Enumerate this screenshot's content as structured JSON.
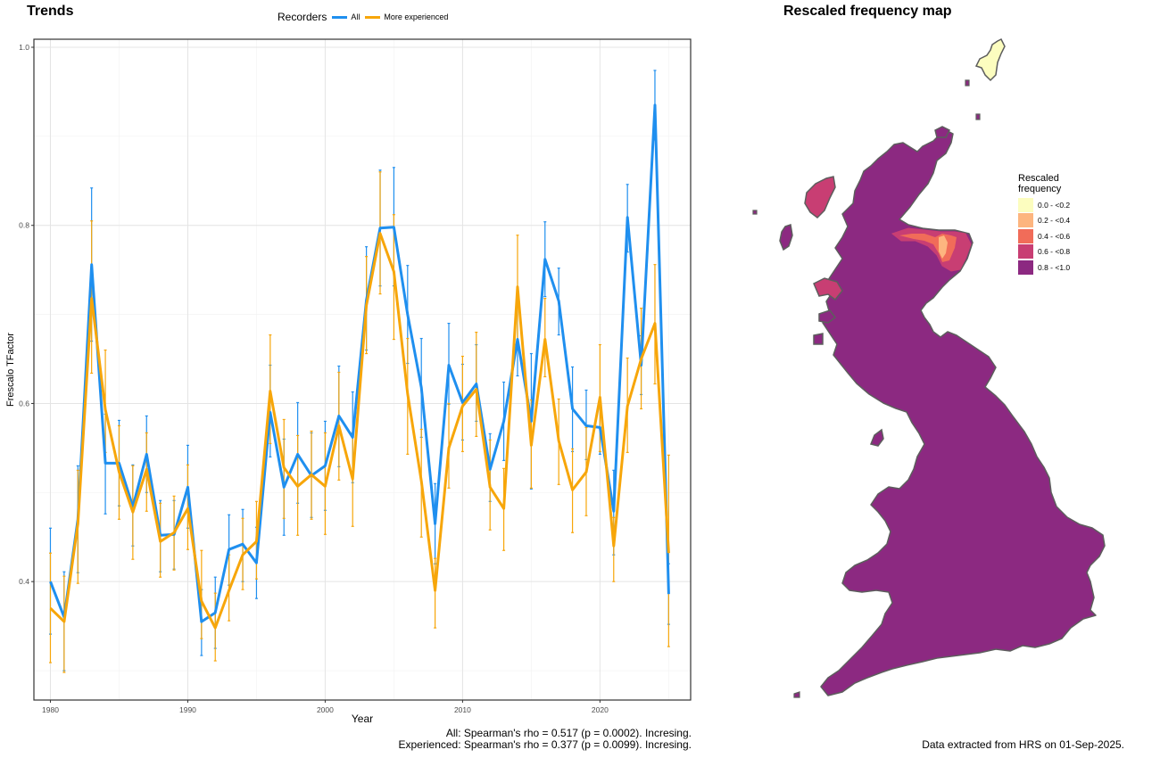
{
  "trends_title": "Trends",
  "map_title": "Rescaled frequency map",
  "legend": {
    "title": "Recorders",
    "items": [
      {
        "label": "All",
        "color": "#1f8fef"
      },
      {
        "label": "More experienced",
        "color": "#f7a60a"
      }
    ]
  },
  "chart_data": {
    "type": "line",
    "xlabel": "Year",
    "ylabel": "Frescalo TFactor",
    "x_ticks": [
      1980,
      1990,
      2000,
      2010,
      2020
    ],
    "y_ticks": [
      0.4,
      0.6,
      0.8,
      1.0
    ],
    "y_tick_labels": [
      "0.4",
      "0.6",
      "0.8",
      "1.0"
    ],
    "xlim": [
      1978.8,
      2026.6
    ],
    "ylim": [
      0.267,
      1.009
    ],
    "grid": true,
    "legend_position": "top",
    "series": [
      {
        "name": "All",
        "color": "#1f8fef",
        "x": [
          1980,
          1981,
          1982,
          1983,
          1984,
          1985,
          1986,
          1987,
          1988,
          1989,
          1990,
          1991,
          1992,
          1993,
          1994,
          1995,
          1996,
          1997,
          1998,
          1999,
          2000,
          2001,
          2002,
          2003,
          2004,
          2005,
          2006,
          2007,
          2008,
          2009,
          2010,
          2011,
          2012,
          2013,
          2014,
          2015,
          2016,
          2017,
          2018,
          2019,
          2020,
          2021,
          2022,
          2023,
          2024,
          2025
        ],
        "y": [
          0.4,
          0.36,
          0.47,
          0.756,
          0.533,
          0.533,
          0.484,
          0.543,
          0.452,
          0.453,
          0.506,
          0.355,
          0.365,
          0.436,
          0.442,
          0.421,
          0.59,
          0.506,
          0.543,
          0.519,
          0.53,
          0.586,
          0.562,
          0.716,
          0.797,
          0.798,
          0.7,
          0.618,
          0.465,
          0.643,
          0.601,
          0.622,
          0.526,
          0.58,
          0.672,
          0.58,
          0.762,
          0.715,
          0.594,
          0.575,
          0.573,
          0.479,
          0.809,
          0.643,
          0.935,
          0.386
        ],
        "err_low": [
          0.341,
          0.3,
          0.41,
          0.67,
          0.476,
          0.485,
          0.44,
          0.5,
          0.411,
          0.414,
          0.46,
          0.317,
          0.325,
          0.396,
          0.4,
          0.381,
          0.54,
          0.452,
          0.488,
          0.472,
          0.48,
          0.529,
          0.511,
          0.66,
          0.732,
          0.732,
          0.645,
          0.562,
          0.42,
          0.599,
          0.559,
          0.58,
          0.49,
          0.536,
          0.631,
          0.504,
          0.72,
          0.677,
          0.546,
          0.537,
          0.543,
          0.43,
          0.77,
          0.61,
          0.896,
          0.352
        ],
        "err_high": [
          0.46,
          0.411,
          0.53,
          0.842,
          0.588,
          0.581,
          0.531,
          0.586,
          0.491,
          0.491,
          0.553,
          0.391,
          0.405,
          0.475,
          0.481,
          0.461,
          0.643,
          0.56,
          0.601,
          0.567,
          0.58,
          0.642,
          0.613,
          0.776,
          0.862,
          0.865,
          0.755,
          0.673,
          0.51,
          0.69,
          0.644,
          0.666,
          0.566,
          0.624,
          0.712,
          0.656,
          0.804,
          0.752,
          0.641,
          0.615,
          0.604,
          0.525,
          0.846,
          0.676,
          0.974,
          0.42
        ]
      },
      {
        "name": "More experienced",
        "color": "#f7a60a",
        "x": [
          1980,
          1981,
          1982,
          1983,
          1984,
          1985,
          1986,
          1987,
          1988,
          1989,
          1990,
          1991,
          1992,
          1993,
          1994,
          1995,
          1996,
          1997,
          1998,
          1999,
          2000,
          2001,
          2002,
          2003,
          2004,
          2005,
          2006,
          2007,
          2008,
          2009,
          2010,
          2011,
          2012,
          2013,
          2014,
          2015,
          2016,
          2017,
          2018,
          2019,
          2020,
          2021,
          2022,
          2023,
          2024,
          2025
        ],
        "y": [
          0.37,
          0.355,
          0.465,
          0.718,
          0.593,
          0.523,
          0.478,
          0.526,
          0.445,
          0.455,
          0.482,
          0.378,
          0.348,
          0.39,
          0.43,
          0.445,
          0.614,
          0.528,
          0.507,
          0.52,
          0.507,
          0.575,
          0.515,
          0.71,
          0.791,
          0.748,
          0.611,
          0.513,
          0.39,
          0.55,
          0.597,
          0.616,
          0.506,
          0.482,
          0.731,
          0.553,
          0.672,
          0.558,
          0.503,
          0.523,
          0.607,
          0.44,
          0.597,
          0.65,
          0.69,
          0.432
        ],
        "err_low": [
          0.309,
          0.298,
          0.398,
          0.634,
          0.545,
          0.47,
          0.425,
          0.479,
          0.405,
          0.413,
          0.436,
          0.336,
          0.311,
          0.356,
          0.391,
          0.403,
          0.555,
          0.471,
          0.452,
          0.47,
          0.453,
          0.514,
          0.462,
          0.656,
          0.723,
          0.672,
          0.543,
          0.45,
          0.348,
          0.505,
          0.546,
          0.563,
          0.458,
          0.435,
          0.672,
          0.505,
          0.63,
          0.509,
          0.455,
          0.474,
          0.546,
          0.4,
          0.545,
          0.594,
          0.622,
          0.327
        ],
        "err_high": [
          0.432,
          0.406,
          0.525,
          0.805,
          0.66,
          0.575,
          0.53,
          0.567,
          0.488,
          0.496,
          0.531,
          0.435,
          0.387,
          0.43,
          0.471,
          0.49,
          0.677,
          0.582,
          0.564,
          0.569,
          0.567,
          0.635,
          0.567,
          0.765,
          0.86,
          0.812,
          0.673,
          0.571,
          0.426,
          0.6,
          0.653,
          0.68,
          0.559,
          0.527,
          0.789,
          0.604,
          0.718,
          0.605,
          0.549,
          0.573,
          0.666,
          0.472,
          0.651,
          0.707,
          0.756,
          0.542
        ]
      }
    ]
  },
  "map_legend": {
    "title": [
      "Rescaled",
      "frequency"
    ],
    "items": [
      {
        "label": "0.0 - <0.2",
        "color": "#fcfdbf"
      },
      {
        "label": "0.2 - <0.4",
        "color": "#fdb57f"
      },
      {
        "label": "0.4 - <0.6",
        "color": "#f16c59"
      },
      {
        "label": "0.6 - <0.8",
        "color": "#c83e73"
      },
      {
        "label": "0.8 - <1.0",
        "color": "#8c2981"
      }
    ]
  },
  "notes": {
    "stats": [
      "All: Spearman's rho = 0.517 (p = 0.0002). Incresing.",
      "Experienced: Spearman's rho = 0.377 (p = 0.0099). Incresing."
    ],
    "source": "Data extracted from HRS on 01-Sep-2025."
  }
}
